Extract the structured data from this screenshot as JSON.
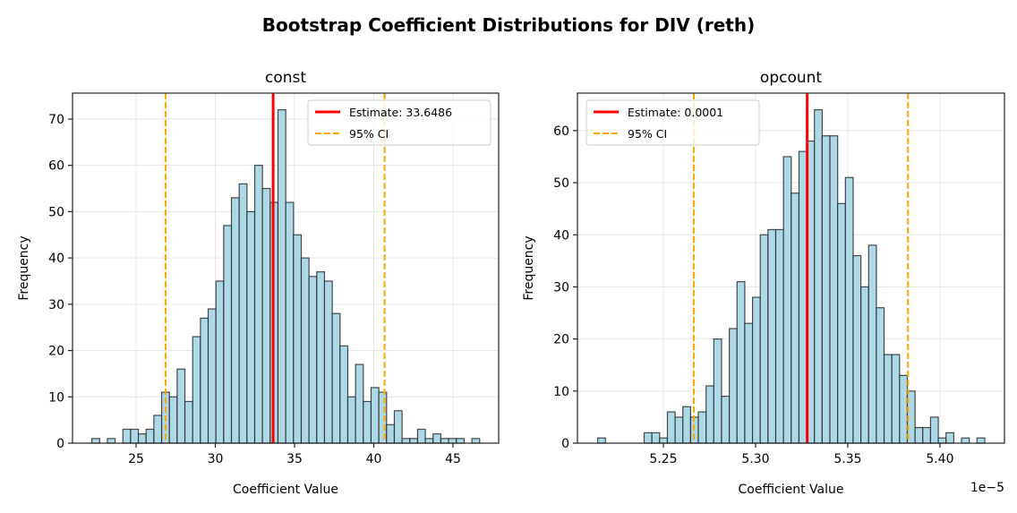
{
  "figure_title": "Bootstrap Coefficient Distributions for DIV (reth)",
  "chart_data": [
    {
      "type": "bar",
      "subtype": "histogram",
      "title": "const",
      "xlabel": "Coefficient Value",
      "ylabel": "Frequency",
      "xlim": [
        20.99,
        47.88
      ],
      "ylim": [
        0,
        75.6
      ],
      "xticks": [
        25,
        30,
        35,
        40,
        45
      ],
      "xtick_labels": [
        "25",
        "30",
        "35",
        "40",
        "45"
      ],
      "yticks": [
        0,
        10,
        20,
        30,
        40,
        50,
        60,
        70
      ],
      "ytick_labels": [
        "0",
        "10",
        "20",
        "30",
        "40",
        "50",
        "60",
        "70"
      ],
      "offset_label": "",
      "grid": true,
      "bin_start": 22.21,
      "bin_end": 46.68,
      "counts": [
        1,
        0,
        1,
        0,
        3,
        3,
        2,
        3,
        6,
        11,
        10,
        16,
        9,
        23,
        27,
        29,
        35,
        47,
        53,
        56,
        50,
        60,
        55,
        52,
        72,
        52,
        45,
        40,
        36,
        37,
        35,
        28,
        21,
        10,
        17,
        9,
        12,
        11,
        4,
        7,
        1,
        1,
        3,
        1,
        2,
        1,
        1,
        1,
        0,
        1
      ],
      "estimate": 33.6486,
      "ci": [
        26.86,
        40.68
      ],
      "legend": {
        "placement": "upper right",
        "estimate_label": "Estimate: 33.6486",
        "ci_label": "95% CI"
      }
    },
    {
      "type": "bar",
      "subtype": "histogram",
      "title": "opcount",
      "xlabel": "Coefficient Value",
      "ylabel": "Frequency",
      "xlim": [
        5.2034,
        5.435
      ],
      "ylim": [
        0,
        67.2
      ],
      "xticks": [
        5.25,
        5.3,
        5.35,
        5.4
      ],
      "xtick_labels": [
        "5.25",
        "5.30",
        "5.35",
        "5.40"
      ],
      "yticks": [
        0,
        10,
        20,
        30,
        40,
        50,
        60
      ],
      "ytick_labels": [
        "0",
        "10",
        "20",
        "30",
        "40",
        "50",
        "60"
      ],
      "offset_label": "1e−5",
      "grid": true,
      "bin_start": 5.2144,
      "bin_end": 5.4243,
      "counts": [
        1,
        0,
        0,
        0,
        0,
        0,
        2,
        2,
        1,
        6,
        5,
        7,
        5,
        6,
        11,
        20,
        9,
        22,
        31,
        23,
        28,
        40,
        41,
        41,
        55,
        48,
        56,
        58,
        64,
        59,
        59,
        46,
        51,
        36,
        30,
        38,
        26,
        17,
        17,
        13,
        10,
        3,
        3,
        5,
        1,
        2,
        0,
        1,
        0,
        1
      ],
      "estimate": 5.328,
      "ci": [
        5.2665,
        5.3827
      ],
      "legend": {
        "placement": "upper left",
        "estimate_label": "Estimate: 0.0001",
        "ci_label": "95% CI"
      }
    }
  ],
  "colors": {
    "bar_fill": "#add8e6",
    "bar_edge": "#2b2b2b",
    "estimate": "#ff0000",
    "ci": "#ffa500",
    "grid": "#e6e6e6"
  }
}
